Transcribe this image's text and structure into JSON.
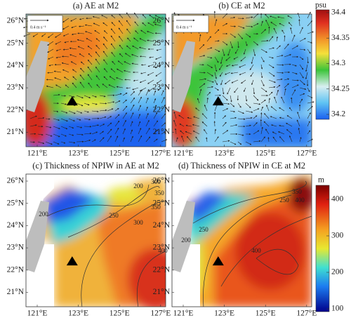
{
  "panels": [
    {
      "title": "(a) AE at M2",
      "scale_label": "0.4 m s⁻¹"
    },
    {
      "title": "(b) CE at M2",
      "scale_label": "0.4 m s⁻¹"
    },
    {
      "title": "(c) Thickness of NPIW in AE at M2",
      "contour_labels": [
        200,
        300,
        350,
        200,
        250,
        300,
        350,
        400
      ]
    },
    {
      "title": "(d) Thickness of NPIW in CE at M2",
      "contour_labels": [
        350,
        250,
        400,
        250,
        200,
        400
      ]
    }
  ],
  "axes": {
    "yticks": [
      "26°N",
      "25°N",
      "24°N",
      "23°N",
      "22°N",
      "21°N"
    ],
    "xticks": [
      "121°E",
      "123°E",
      "125°E",
      "127°E"
    ]
  },
  "colorbars": [
    {
      "unit": "psu",
      "ticks": [
        34.4,
        34.35,
        34.3,
        34.25,
        34.2
      ]
    },
    {
      "unit": "m",
      "ticks": [
        400,
        300,
        200,
        100
      ]
    }
  ]
}
